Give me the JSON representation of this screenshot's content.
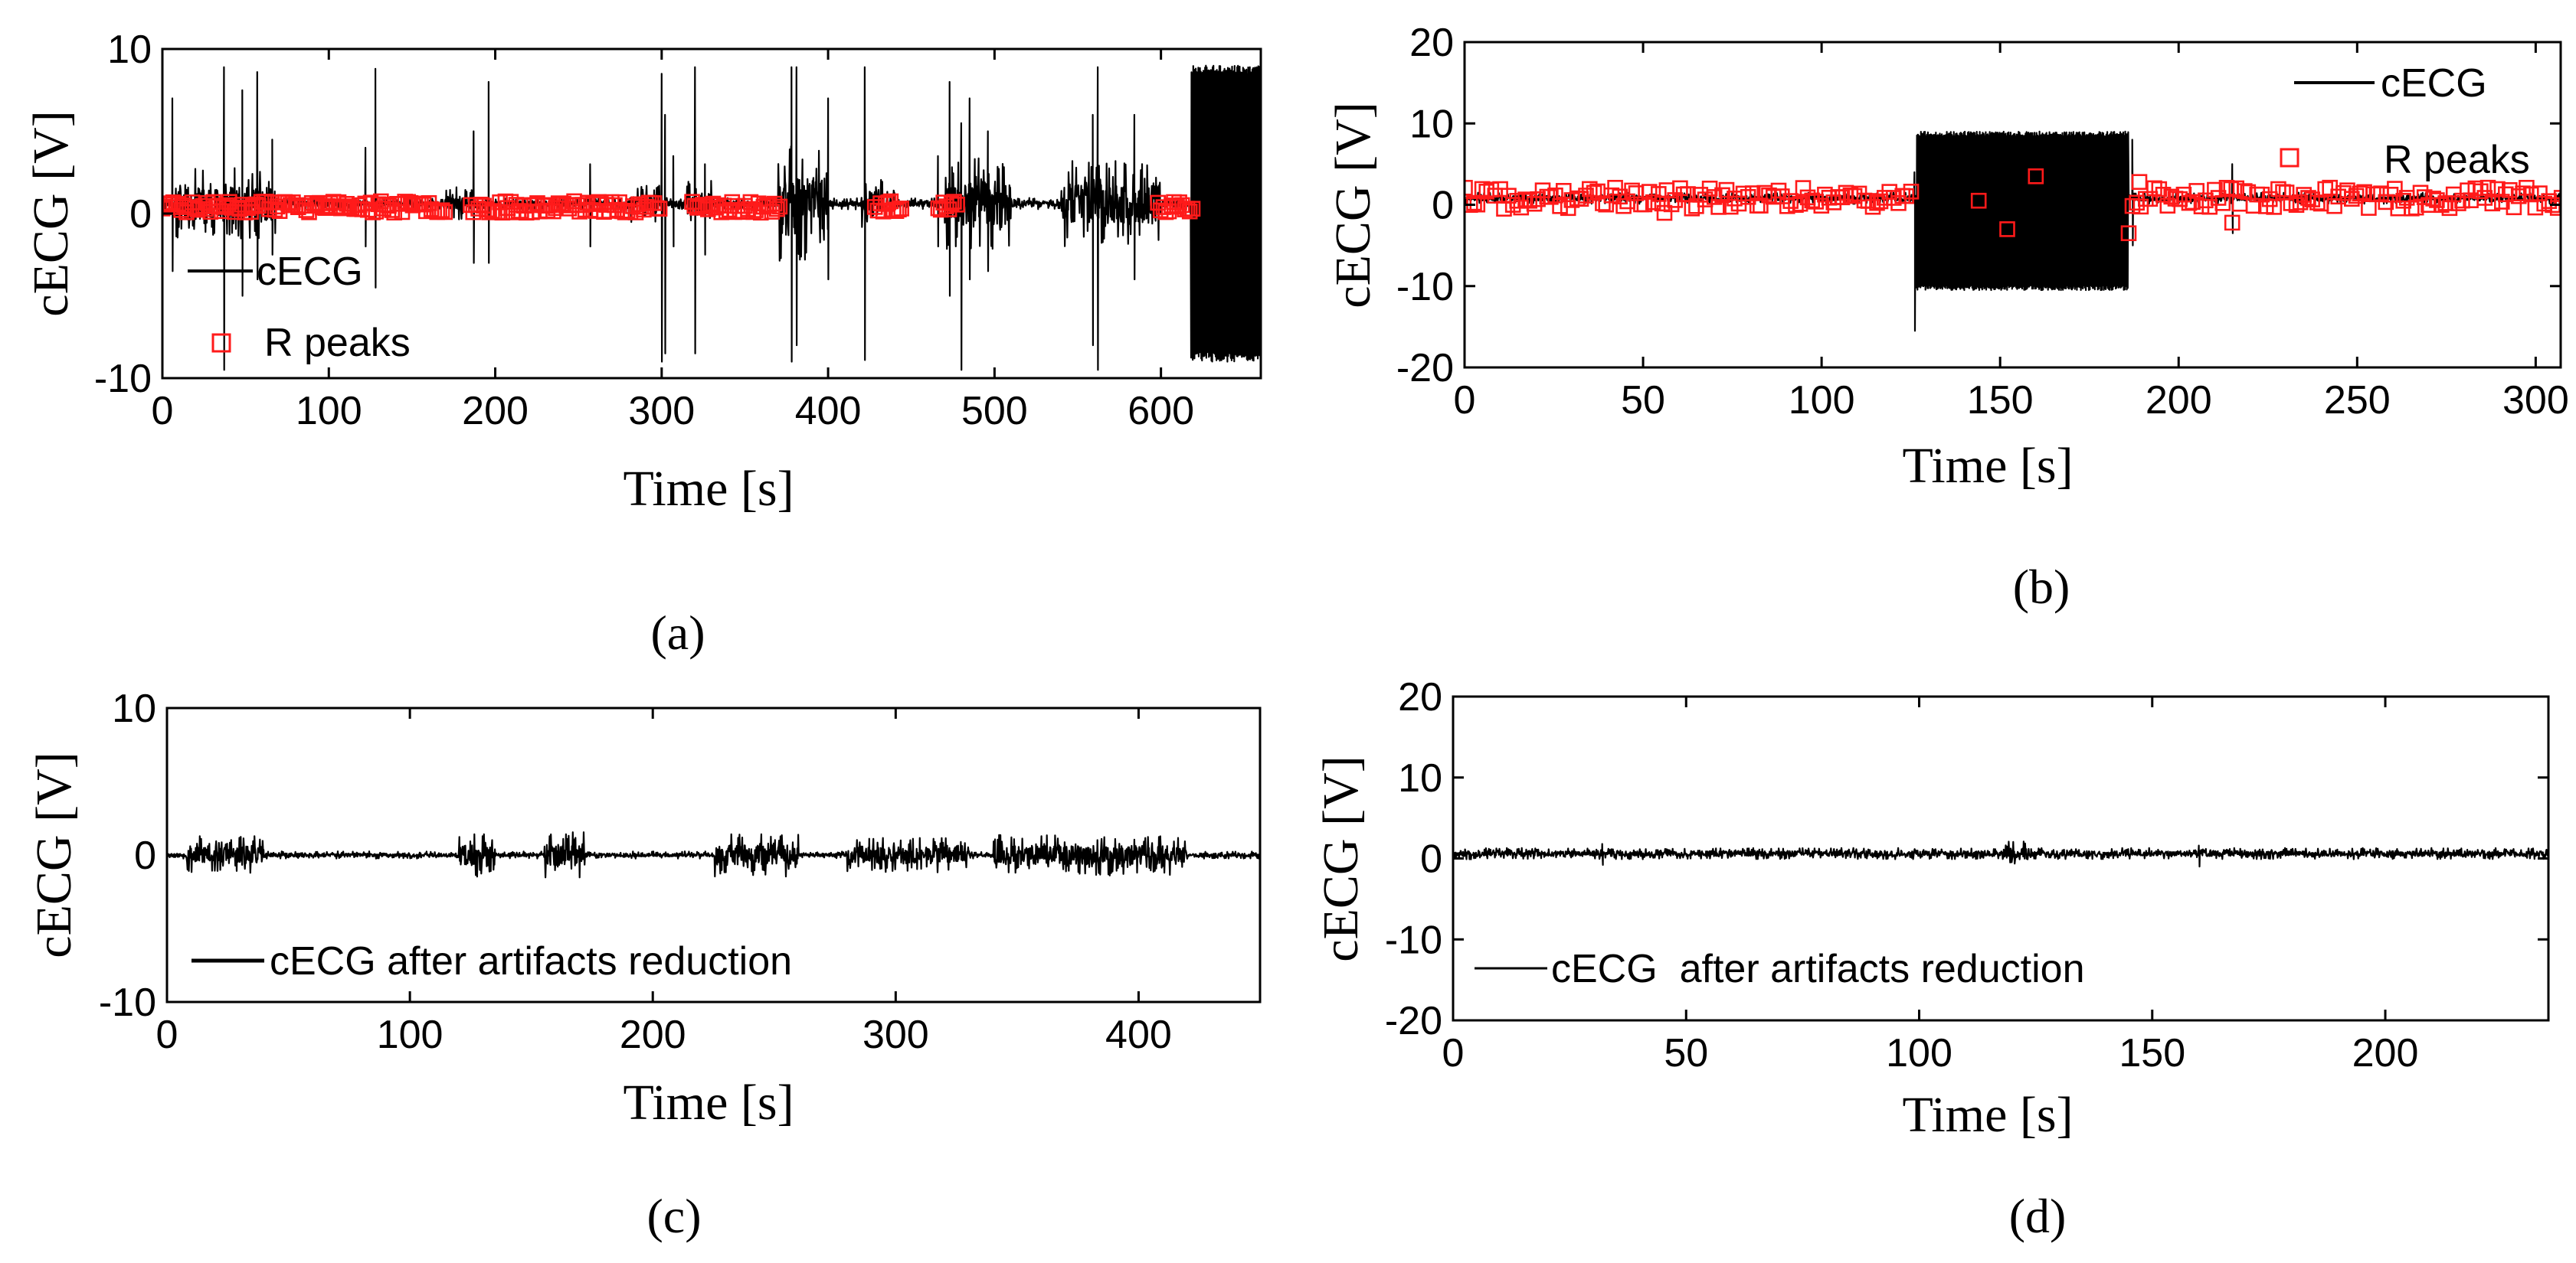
{
  "figure": {
    "panels": [
      {
        "id": "a",
        "caption": "(a)"
      },
      {
        "id": "b",
        "caption": "(b)"
      },
      {
        "id": "c",
        "caption": "(c)"
      },
      {
        "id": "d",
        "caption": "(d)"
      }
    ]
  },
  "chart_data": [
    {
      "panel": "a",
      "type": "line",
      "title": "",
      "xlabel": "Time [s]",
      "ylabel": "cECG [V]",
      "xlim": [
        0,
        660
      ],
      "ylim": [
        -10,
        10
      ],
      "xticks": [
        0,
        100,
        200,
        300,
        400,
        500,
        600
      ],
      "yticks": [
        -10,
        0,
        10
      ],
      "legend": [
        "cECG",
        "R peaks"
      ],
      "legend_position": "lower-left",
      "colors": {
        "signal": "#000000",
        "rpeaks": "#ff1a1a"
      },
      "series": [
        {
          "name": "cECG",
          "style": "line",
          "seed": 11,
          "duration": 660,
          "samples": 2600,
          "baseline": 0.6,
          "base_amplitude": 0.35,
          "bursts": [
            {
              "start": 8,
              "end": 68,
              "amplitude": 2.2
            },
            {
              "start": 170,
              "end": 190,
              "amplitude": 1.0
            },
            {
              "start": 280,
              "end": 300,
              "amplitude": 1.2
            },
            {
              "start": 315,
              "end": 330,
              "amplitude": 1.4
            },
            {
              "start": 370,
              "end": 400,
              "amplitude": 3.5
            },
            {
              "start": 420,
              "end": 440,
              "amplitude": 1.6
            },
            {
              "start": 470,
              "end": 510,
              "amplitude": 2.8
            },
            {
              "start": 540,
              "end": 600,
              "amplitude": 2.6
            },
            {
              "start": 618,
              "end": 660,
              "amplitude": 9.0,
              "saturate": true
            }
          ],
          "spikes": [
            {
              "t": 6,
              "hi": 7.0,
              "lo": -3.5
            },
            {
              "t": 37,
              "hi": 8.9,
              "lo": -9.5
            },
            {
              "t": 48,
              "hi": 7.5,
              "lo": -5.0
            },
            {
              "t": 57,
              "hi": 8.6,
              "lo": -4.0
            },
            {
              "t": 66,
              "hi": 4.5,
              "lo": -2.5
            },
            {
              "t": 122,
              "hi": 4.0,
              "lo": -2.0
            },
            {
              "t": 128,
              "hi": 8.8,
              "lo": -4.5
            },
            {
              "t": 187,
              "hi": 5.0,
              "lo": -3.0
            },
            {
              "t": 196,
              "hi": 8.0,
              "lo": -3.0
            },
            {
              "t": 257,
              "hi": 3.0,
              "lo": -2.0
            },
            {
              "t": 300,
              "hi": 8.5,
              "lo": -9.0
            },
            {
              "t": 302,
              "hi": 6.0,
              "lo": -8.5
            },
            {
              "t": 307,
              "hi": 3.5,
              "lo": -2.0
            },
            {
              "t": 320,
              "hi": 8.9,
              "lo": -8.5
            },
            {
              "t": 326,
              "hi": 3.0,
              "lo": -2.5
            },
            {
              "t": 378,
              "hi": 8.9,
              "lo": -9.0
            },
            {
              "t": 381,
              "hi": 8.9,
              "lo": -8.0
            },
            {
              "t": 400,
              "hi": 7.0,
              "lo": -4.0
            },
            {
              "t": 422,
              "hi": 8.9,
              "lo": -8.9
            },
            {
              "t": 466,
              "hi": 3.5,
              "lo": -2.0
            },
            {
              "t": 473,
              "hi": 8.0,
              "lo": -5.0
            },
            {
              "t": 480,
              "hi": 5.5,
              "lo": -9.5
            },
            {
              "t": 485,
              "hi": 7.0,
              "lo": -4.0
            },
            {
              "t": 496,
              "hi": 5.0,
              "lo": -3.5
            },
            {
              "t": 559,
              "hi": 6.0,
              "lo": -8.0
            },
            {
              "t": 562,
              "hi": 8.9,
              "lo": -9.5
            },
            {
              "t": 584,
              "hi": 6.0,
              "lo": -4.0
            }
          ]
        },
        {
          "name": "R peaks",
          "style": "markers",
          "seed": 23,
          "y_center": 0.4,
          "y_jitter": 0.35,
          "marker_step": 1.6,
          "segments": [
            [
              0,
              170
            ],
            [
              185,
              300
            ],
            [
              318,
              372
            ],
            [
              428,
              445
            ],
            [
              466,
              478
            ],
            [
              598,
              620
            ]
          ]
        }
      ]
    },
    {
      "panel": "b",
      "type": "line",
      "title": "",
      "xlabel": "Time [s]",
      "ylabel": "cECG [V]",
      "xlim": [
        0,
        307
      ],
      "ylim": [
        -20,
        20
      ],
      "xticks": [
        0,
        50,
        100,
        150,
        200,
        250,
        300
      ],
      "yticks": [
        -20,
        -10,
        0,
        10,
        20
      ],
      "legend": [
        "cECG",
        "R peaks"
      ],
      "legend_position": "top-right",
      "colors": {
        "signal": "#000000",
        "rpeaks": "#ff1a1a"
      },
      "series": [
        {
          "name": "cECG",
          "style": "line",
          "seed": 37,
          "duration": 307,
          "samples": 2200,
          "baseline": 0.8,
          "base_amplitude": 0.7,
          "bursts": [
            {
              "start": 126.5,
              "end": 186,
              "amplitude": 9.5,
              "saturate": true,
              "lo": -10.5,
              "hi": 9.0
            }
          ],
          "spikes": [
            {
              "t": 126,
              "hi": 4.0,
              "lo": -15.5
            },
            {
              "t": 187,
              "hi": 8.0,
              "lo": -5.0
            },
            {
              "t": 215,
              "hi": 5.0,
              "lo": -3.5
            }
          ]
        },
        {
          "name": "R peaks",
          "style": "markers",
          "seed": 41,
          "y_center": 0.8,
          "y_jitter": 1.3,
          "marker_step": 1.2,
          "segments": [
            [
              0,
              126
            ],
            [
              187,
              307
            ]
          ],
          "extra_points": [
            [
              56,
              -1.0
            ],
            [
              144,
              0.5
            ],
            [
              152,
              -3.0
            ],
            [
              160,
              3.5
            ],
            [
              186,
              -3.5
            ],
            [
              189,
              2.8
            ],
            [
              215,
              -2.2
            ]
          ]
        }
      ]
    },
    {
      "panel": "c",
      "type": "line",
      "title": "",
      "xlabel": "Time [s]",
      "ylabel": "cECG [V]",
      "xlim": [
        0,
        450
      ],
      "ylim": [
        -10,
        10
      ],
      "xticks": [
        0,
        100,
        200,
        300,
        400
      ],
      "yticks": [
        -10,
        0,
        10
      ],
      "legend": [
        "cECG after artifacts reduction"
      ],
      "legend_position": "lower-left",
      "colors": {
        "signal": "#000000"
      },
      "series": [
        {
          "name": "cECG after artifacts reduction",
          "style": "line",
          "seed": 53,
          "duration": 450,
          "samples": 2400,
          "baseline": 0.0,
          "base_amplitude": 0.25,
          "bursts": [
            {
              "start": 8,
              "end": 40,
              "amplitude": 1.3
            },
            {
              "start": 120,
              "end": 135,
              "amplitude": 1.5
            },
            {
              "start": 155,
              "end": 172,
              "amplitude": 1.6
            },
            {
              "start": 225,
              "end": 260,
              "amplitude": 1.5
            },
            {
              "start": 280,
              "end": 330,
              "amplitude": 1.2
            },
            {
              "start": 340,
              "end": 420,
              "amplitude": 1.4
            }
          ],
          "spikes": []
        }
      ]
    },
    {
      "panel": "d",
      "type": "line",
      "title": "",
      "xlabel": "Time [s]",
      "ylabel": "cECG [V]",
      "xlim": [
        0,
        235
      ],
      "ylim": [
        -20,
        20
      ],
      "xticks": [
        0,
        50,
        100,
        150,
        200
      ],
      "yticks": [
        -20,
        -10,
        0,
        10,
        20
      ],
      "legend": [
        "cECG  after artifacts reduction"
      ],
      "legend_position": "lower-left",
      "colors": {
        "signal": "#000000"
      },
      "series": [
        {
          "name": "cECG  after artifacts reduction",
          "style": "line",
          "seed": 67,
          "duration": 235,
          "samples": 2200,
          "baseline": 0.6,
          "base_amplitude": 0.7,
          "bursts": [
            {
              "start": 118,
              "end": 124,
              "amplitude": 1.6
            }
          ],
          "spikes": [
            {
              "t": 32,
              "hi": 1.8,
              "lo": -0.8
            },
            {
              "t": 160,
              "hi": 1.6,
              "lo": -1.0
            }
          ]
        }
      ]
    }
  ]
}
